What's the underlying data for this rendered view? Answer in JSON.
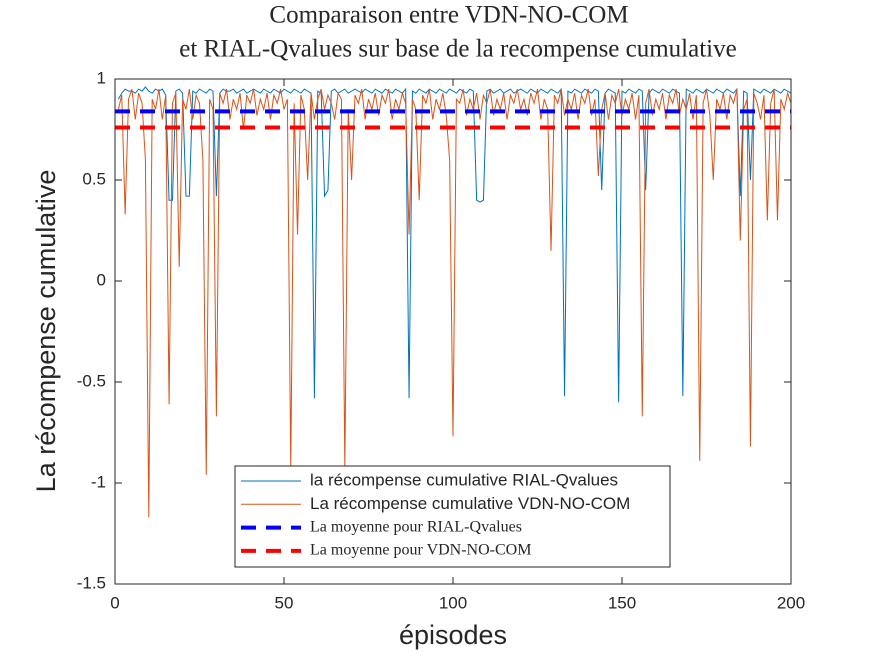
{
  "chart_data": {
    "type": "line",
    "title": [
      "Comparaison entre VDN-NO-COM",
      "et RIAL-Qvalues sur base de la recompense cumulative"
    ],
    "xlabel": "épisodes",
    "ylabel": "La récompense cumulative",
    "xlim": [
      0,
      200
    ],
    "ylim": [
      -1.5,
      1
    ],
    "xticks": [
      0,
      50,
      100,
      150,
      200
    ],
    "yticks": [
      -1.5,
      -1,
      -0.5,
      0,
      0.5,
      1
    ],
    "x": [
      1,
      2,
      3,
      4,
      5,
      6,
      7,
      8,
      9,
      10,
      11,
      12,
      13,
      14,
      15,
      16,
      17,
      18,
      19,
      20,
      21,
      22,
      23,
      24,
      25,
      26,
      27,
      28,
      29,
      30,
      31,
      32,
      33,
      34,
      35,
      36,
      37,
      38,
      39,
      40,
      41,
      42,
      43,
      44,
      45,
      46,
      47,
      48,
      49,
      50,
      51,
      52,
      53,
      54,
      55,
      56,
      57,
      58,
      59,
      60,
      61,
      62,
      63,
      64,
      65,
      66,
      67,
      68,
      69,
      70,
      71,
      72,
      73,
      74,
      75,
      76,
      77,
      78,
      79,
      80,
      81,
      82,
      83,
      84,
      85,
      86,
      87,
      88,
      89,
      90,
      91,
      92,
      93,
      94,
      95,
      96,
      97,
      98,
      99,
      100,
      101,
      102,
      103,
      104,
      105,
      106,
      107,
      108,
      109,
      110,
      111,
      112,
      113,
      114,
      115,
      116,
      117,
      118,
      119,
      120,
      121,
      122,
      123,
      124,
      125,
      126,
      127,
      128,
      129,
      130,
      131,
      132,
      133,
      134,
      135,
      136,
      137,
      138,
      139,
      140,
      141,
      142,
      143,
      144,
      145,
      146,
      147,
      148,
      149,
      150,
      151,
      152,
      153,
      154,
      155,
      156,
      157,
      158,
      159,
      160,
      161,
      162,
      163,
      164,
      165,
      166,
      167,
      168,
      169,
      170,
      171,
      172,
      173,
      174,
      175,
      176,
      177,
      178,
      179,
      180,
      181,
      182,
      183,
      184,
      185,
      186,
      187,
      188,
      189,
      190,
      191,
      192,
      193,
      194,
      195,
      196,
      197,
      198,
      199,
      200
    ],
    "series": [
      {
        "name": "la récompense cumulative RIAL-Qvalues",
        "color": "#0072bd",
        "values": [
          0.9,
          0.93,
          0.95,
          0.94,
          0.94,
          0.93,
          0.95,
          0.94,
          0.96,
          0.94,
          0.93,
          0.95,
          0.94,
          0.95,
          0.92,
          0.4,
          0.4,
          0.94,
          0.95,
          0.93,
          0.42,
          0.42,
          0.94,
          0.93,
          0.95,
          0.94,
          0.93,
          0.95,
          0.94,
          0.42,
          0.93,
          0.95,
          0.94,
          0.94,
          0.95,
          0.93,
          0.94,
          0.95,
          0.93,
          0.94,
          0.95,
          0.94,
          0.93,
          0.95,
          0.94,
          0.93,
          0.95,
          0.94,
          0.93,
          0.95,
          0.94,
          0.93,
          0.95,
          0.94,
          0.93,
          0.95,
          0.94,
          0.93,
          -0.58,
          0.94,
          0.93,
          0.42,
          0.45,
          0.94,
          0.95,
          0.93,
          0.94,
          0.95,
          0.93,
          0.94,
          0.95,
          0.94,
          0.93,
          0.95,
          0.94,
          0.93,
          0.95,
          0.94,
          0.93,
          0.95,
          0.94,
          0.93,
          0.95,
          0.94,
          0.93,
          0.95,
          -0.58,
          0.94,
          0.93,
          0.95,
          0.94,
          0.93,
          0.95,
          0.94,
          0.93,
          0.95,
          0.94,
          0.93,
          0.95,
          0.94,
          0.93,
          0.95,
          0.94,
          0.93,
          0.95,
          0.94,
          0.4,
          0.39,
          0.4,
          0.94,
          0.95,
          0.93,
          0.94,
          0.95,
          0.93,
          0.94,
          0.95,
          0.93,
          0.94,
          0.95,
          0.94,
          0.93,
          0.95,
          0.94,
          0.93,
          0.95,
          0.94,
          0.93,
          0.95,
          0.94,
          0.93,
          0.95,
          -0.57,
          0.94,
          0.93,
          0.95,
          0.94,
          0.93,
          0.95,
          0.94,
          0.93,
          0.95,
          0.94,
          0.45,
          0.93,
          0.95,
          0.94,
          0.93,
          -0.6,
          0.94,
          0.93,
          0.95,
          0.94,
          0.93,
          0.95,
          0.94,
          0.45,
          0.93,
          0.95,
          0.94,
          0.93,
          0.95,
          0.94,
          0.93,
          0.95,
          0.94,
          0.93,
          -0.57,
          0.95,
          0.94,
          0.93,
          0.95,
          0.94,
          0.93,
          0.95,
          0.94,
          0.93,
          0.95,
          0.94,
          0.93,
          0.95,
          0.94,
          0.93,
          0.95,
          0.42,
          0.94,
          0.93,
          0.5,
          0.95,
          0.94,
          0.93,
          0.95,
          0.94,
          0.93,
          0.95,
          0.94,
          0.93,
          0.95,
          0.94,
          0.93
        ]
      },
      {
        "name": "La récompense cumulative VDN-NO-COM",
        "color": "#d95319",
        "values": [
          0.85,
          0.92,
          0.33,
          0.9,
          0.95,
          0.8,
          0.93,
          0.88,
          0.6,
          -1.17,
          0.9,
          0.85,
          0.95,
          0.8,
          0.92,
          -0.61,
          0.88,
          0.93,
          0.07,
          0.9,
          0.85,
          0.95,
          0.8,
          0.92,
          0.88,
          0.6,
          -0.96,
          0.9,
          0.85,
          -0.67,
          0.93,
          0.88,
          0.95,
          0.8,
          0.9,
          0.85,
          0.93,
          0.75,
          0.92,
          0.88,
          0.95,
          0.82,
          0.9,
          0.85,
          0.93,
          0.8,
          0.92,
          0.88,
          0.95,
          0.85,
          0.9,
          -0.93,
          0.88,
          0.23,
          0.92,
          0.85,
          0.5,
          0.93,
          0.8,
          0.9,
          0.95,
          0.85,
          0.92,
          0.88,
          0.8,
          0.93,
          0.9,
          -0.93,
          0.85,
          0.5,
          0.92,
          0.88,
          0.95,
          0.8,
          0.9,
          0.85,
          0.93,
          0.82,
          0.92,
          0.88,
          0.95,
          0.8,
          0.9,
          0.85,
          0.93,
          0.88,
          0.23,
          0.9,
          0.85,
          0.4,
          0.92,
          0.88,
          0.95,
          0.8,
          0.9,
          0.85,
          0.93,
          0.82,
          0.6,
          -0.77,
          0.9,
          0.88,
          0.95,
          0.82,
          0.9,
          0.85,
          0.93,
          0.8,
          0.92,
          0.88,
          0.95,
          0.82,
          0.9,
          0.85,
          0.93,
          0.8,
          0.92,
          0.88,
          0.95,
          0.85,
          0.9,
          0.82,
          0.93,
          0.88,
          0.95,
          0.8,
          0.9,
          0.85,
          0.15,
          0.92,
          0.88,
          0.95,
          0.82,
          0.9,
          0.85,
          0.93,
          0.8,
          0.92,
          0.88,
          0.95,
          0.82,
          0.9,
          0.52,
          0.85,
          0.93,
          0.8,
          0.92,
          0.88,
          0.95,
          0.82,
          0.9,
          0.85,
          0.93,
          0.8,
          0.92,
          -0.67,
          0.88,
          0.95,
          0.82,
          0.9,
          0.85,
          0.93,
          0.8,
          0.92,
          0.88,
          0.95,
          0.82,
          0.9,
          0.85,
          0.93,
          0.8,
          0.92,
          -0.89,
          0.88,
          0.95,
          0.82,
          0.5,
          0.9,
          0.85,
          0.93,
          0.8,
          0.92,
          0.88,
          0.95,
          0.2,
          0.85,
          0.9,
          -0.82,
          0.93,
          0.88,
          0.8,
          0.92,
          0.3,
          0.88,
          0.95,
          0.3,
          0.9,
          0.85,
          0.93,
          0.88
        ]
      }
    ],
    "mean_lines": [
      {
        "name": "La moyenne pour RIAL-Qvalues",
        "color": "#0000ff",
        "value": 0.84
      },
      {
        "name": "La moyenne pour VDN-NO-COM",
        "color": "#ff0000",
        "value": 0.76
      }
    ]
  }
}
